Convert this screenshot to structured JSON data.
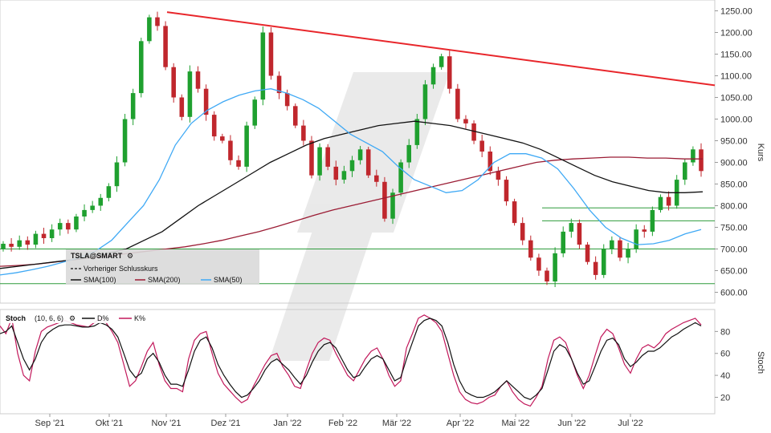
{
  "chart_data": [
    {
      "type": "candlestick",
      "instrument": "TSLA@SMART",
      "ylabel": "Kurs",
      "ylim": [
        575,
        1275
      ],
      "y_ticks": [
        "600.00",
        "650.00",
        "700.00",
        "750.00",
        "800.00",
        "850.00",
        "900.00",
        "950.00",
        "1000.00",
        "1050.00",
        "1100.00",
        "1150.00",
        "1200.00",
        "1250.00"
      ],
      "x_ticks": [
        "Sep '21",
        "Okt '21",
        "Nov '21",
        "Dez '21",
        "Jan '22",
        "Feb '22",
        "Mär '22",
        "Apr '22",
        "Mai '22",
        "Jun '22",
        "Jul '22"
      ],
      "grid": false,
      "legend": [
        {
          "label": "Vorheriger Schlusskurs",
          "color": "#333333",
          "style": "dashed"
        },
        {
          "label": "SMA(100)",
          "color": "#111111"
        },
        {
          "label": "SMA(200)",
          "color": "#9b1c34"
        },
        {
          "label": "SMA(50)",
          "color": "#3fa9f5"
        }
      ],
      "trendline": {
        "from": [
          "Nov '21",
          1247
        ],
        "to": [
          "Jul '22 end",
          1078
        ],
        "color": "#e8262b"
      },
      "horizontal_levels": [
        620,
        700,
        765,
        795
      ],
      "ohlc_path": [
        [
          700,
          712
        ],
        [
          712,
          705
        ],
        [
          705,
          720
        ],
        [
          720,
          710
        ],
        [
          710,
          735
        ],
        [
          735,
          725
        ],
        [
          725,
          745
        ],
        [
          745,
          760
        ],
        [
          760,
          745
        ],
        [
          745,
          775
        ],
        [
          775,
          790
        ],
        [
          790,
          800
        ],
        [
          800,
          818
        ],
        [
          818,
          845
        ],
        [
          845,
          900
        ],
        [
          900,
          1000
        ],
        [
          1000,
          1060
        ],
        [
          1060,
          1180
        ],
        [
          1180,
          1235
        ],
        [
          1235,
          1215
        ],
        [
          1215,
          1120
        ],
        [
          1120,
          1050
        ],
        [
          1050,
          1005
        ],
        [
          1005,
          1110
        ],
        [
          1110,
          1070
        ],
        [
          1070,
          1010
        ],
        [
          1010,
          960
        ],
        [
          960,
          950
        ],
        [
          950,
          905
        ],
        [
          905,
          890
        ],
        [
          890,
          985
        ],
        [
          985,
          1045
        ],
        [
          1045,
          1200
        ],
        [
          1200,
          1100
        ],
        [
          1100,
          1060
        ],
        [
          1060,
          1030
        ],
        [
          1030,
          985
        ],
        [
          985,
          950
        ],
        [
          950,
          870
        ],
        [
          870,
          935
        ],
        [
          935,
          890
        ],
        [
          890,
          860
        ],
        [
          860,
          880
        ],
        [
          880,
          905
        ],
        [
          905,
          930
        ],
        [
          930,
          870
        ],
        [
          870,
          855
        ],
        [
          855,
          770
        ],
        [
          770,
          830
        ],
        [
          830,
          900
        ],
        [
          900,
          940
        ],
        [
          940,
          1000
        ],
        [
          1000,
          1080
        ],
        [
          1080,
          1120
        ],
        [
          1120,
          1145
        ],
        [
          1145,
          1070
        ],
        [
          1070,
          1000
        ],
        [
          1000,
          990
        ],
        [
          990,
          950
        ],
        [
          950,
          925
        ],
        [
          925,
          880
        ],
        [
          880,
          860
        ],
        [
          860,
          810
        ],
        [
          810,
          760
        ],
        [
          760,
          720
        ],
        [
          720,
          680
        ],
        [
          680,
          650
        ],
        [
          650,
          625
        ],
        [
          625,
          690
        ],
        [
          690,
          740
        ],
        [
          740,
          760
        ],
        [
          760,
          710
        ],
        [
          710,
          670
        ],
        [
          670,
          640
        ],
        [
          640,
          700
        ],
        [
          700,
          720
        ],
        [
          720,
          680
        ],
        [
          680,
          700
        ],
        [
          700,
          745
        ],
        [
          745,
          740
        ],
        [
          740,
          790
        ],
        [
          790,
          820
        ],
        [
          820,
          800
        ],
        [
          800,
          860
        ],
        [
          860,
          900
        ],
        [
          900,
          930
        ],
        [
          930,
          880
        ]
      ],
      "sma_50_path": [
        640,
        645,
        652,
        660,
        670,
        680,
        695,
        720,
        760,
        800,
        860,
        940,
        990,
        1020,
        1040,
        1055,
        1065,
        1070,
        1060,
        1045,
        1025,
        995,
        965,
        945,
        925,
        890,
        860,
        845,
        830,
        835,
        860,
        900,
        920,
        920,
        910,
        885,
        840,
        790,
        750,
        725,
        710,
        712,
        720,
        735,
        745
      ],
      "sma_100_path": [
        655,
        660,
        665,
        670,
        675,
        680,
        690,
        700,
        720,
        740,
        770,
        800,
        825,
        850,
        875,
        900,
        920,
        940,
        955,
        965,
        975,
        985,
        990,
        995,
        990,
        985,
        975,
        965,
        955,
        945,
        930,
        910,
        890,
        870,
        855,
        845,
        835,
        830,
        830,
        832
      ],
      "sma_200_path": [
        660,
        662,
        665,
        670,
        675,
        680,
        685,
        690,
        695,
        700,
        705,
        712,
        720,
        730,
        740,
        752,
        765,
        778,
        790,
        800,
        810,
        820,
        830,
        840,
        850,
        860,
        870,
        880,
        890,
        900,
        905,
        908,
        910,
        912,
        912,
        910,
        910,
        908,
        908
      ],
      "previous_close": 880
    },
    {
      "type": "line",
      "title": "Stoch",
      "parameters": "(10, 6, 6)",
      "ylabel": "Stoch",
      "ylim": [
        5,
        100
      ],
      "y_ticks": [
        "20",
        "40",
        "60",
        "80"
      ],
      "series": [
        {
          "name": "D%",
          "color": "#111111",
          "values": [
            78,
            80,
            85,
            70,
            55,
            45,
            55,
            70,
            78,
            82,
            85,
            86,
            86,
            85,
            84,
            84,
            85,
            88,
            86,
            82,
            75,
            60,
            45,
            38,
            42,
            55,
            60,
            52,
            40,
            32,
            32,
            30,
            45,
            62,
            72,
            75,
            65,
            50,
            40,
            32,
            25,
            20,
            22,
            28,
            35,
            45,
            52,
            55,
            50,
            45,
            38,
            32,
            40,
            52,
            62,
            68,
            70,
            65,
            55,
            45,
            38,
            40,
            48,
            55,
            58,
            55,
            45,
            35,
            38,
            55,
            70,
            85,
            90,
            92,
            90,
            85,
            70,
            50,
            35,
            25,
            22,
            20,
            20,
            22,
            25,
            30,
            35,
            30,
            25,
            20,
            18,
            22,
            28,
            45,
            62,
            68,
            65,
            55,
            42,
            32,
            35,
            48,
            62,
            72,
            74,
            68,
            55,
            48,
            52,
            58,
            62,
            62,
            65,
            70,
            75,
            78,
            82,
            85,
            88,
            85
          ]
        },
        {
          "name": "K%",
          "color": "#c2185b",
          "values": [
            85,
            78,
            92,
            60,
            40,
            35,
            62,
            80,
            84,
            86,
            88,
            90,
            88,
            86,
            85,
            84,
            88,
            92,
            88,
            80,
            70,
            50,
            30,
            35,
            48,
            62,
            70,
            50,
            35,
            28,
            28,
            25,
            55,
            72,
            78,
            80,
            60,
            42,
            32,
            26,
            20,
            15,
            18,
            30,
            40,
            50,
            58,
            60,
            48,
            40,
            30,
            28,
            45,
            60,
            70,
            74,
            72,
            60,
            50,
            40,
            35,
            45,
            55,
            62,
            65,
            55,
            40,
            30,
            35,
            65,
            78,
            92,
            95,
            92,
            88,
            80,
            60,
            40,
            25,
            18,
            15,
            14,
            16,
            20,
            22,
            30,
            35,
            25,
            18,
            14,
            12,
            20,
            30,
            55,
            72,
            75,
            70,
            55,
            40,
            28,
            40,
            58,
            75,
            82,
            78,
            65,
            50,
            42,
            55,
            65,
            68,
            65,
            70,
            78,
            82,
            85,
            88,
            90,
            92,
            86
          ]
        }
      ]
    }
  ]
}
